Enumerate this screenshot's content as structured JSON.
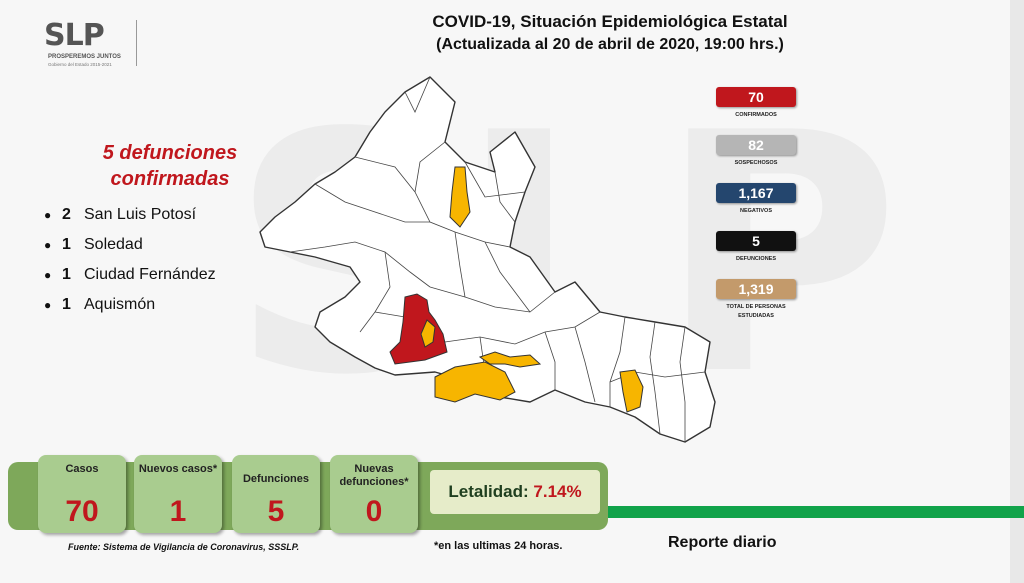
{
  "header": {
    "logo_text": "SLP",
    "logo_tagline": "PROSPEREMOS JUNTOS",
    "logo_subtitle": "Gobierno del Estado 2015-2021",
    "title": "COVID-19, Situación Epidemiológica Estatal",
    "subtitle": "(Actualizada al 20 de abril de 2020, 19:00 hrs.)"
  },
  "deaths_panel": {
    "heading_line1": "5 defunciones",
    "heading_line2": "confirmadas",
    "items": [
      {
        "count": "2",
        "place": "San Luis Potosí"
      },
      {
        "count": "1",
        "place": "Soledad"
      },
      {
        "count": "1",
        "place": "Ciudad Fernández"
      },
      {
        "count": "1",
        "place": "Aquismón"
      }
    ]
  },
  "stats": [
    {
      "value": "70",
      "label": "CONFIRMADOS",
      "color": "#c0171d"
    },
    {
      "value": "82",
      "label": "SOSPECHOSOS",
      "color": "#b5b5b5"
    },
    {
      "value": "1,167",
      "label": "NEGATIVOS",
      "color": "#24466e"
    },
    {
      "value": "5",
      "label": "DEFUNCIONES",
      "color": "#111111"
    },
    {
      "value": "1,319",
      "label": "TOTAL DE PERSONAS ESTUDIADAS",
      "color": "#c39a6b"
    }
  ],
  "summary": {
    "cases_label": "Casos",
    "cases_value": "70",
    "new_cases_label": "Nuevos casos*",
    "new_cases_value": "1",
    "deaths_label": "Defunciones",
    "deaths_value": "5",
    "new_deaths_label": "Nuevas defunciones*",
    "new_deaths_value": "0",
    "lethality_label": "Letalidad:",
    "lethality_value": "7.14%"
  },
  "footer": {
    "source": "Fuente: Sistema de Vigilancia de Coronavirus, SSSLP.",
    "note": "*en las ultimas 24 horas.",
    "report": "Reporte diario"
  },
  "map": {
    "legend_colors": {
      "deaths": "#c0171d",
      "cases": "#f7b500",
      "none": "#ffffff"
    }
  }
}
